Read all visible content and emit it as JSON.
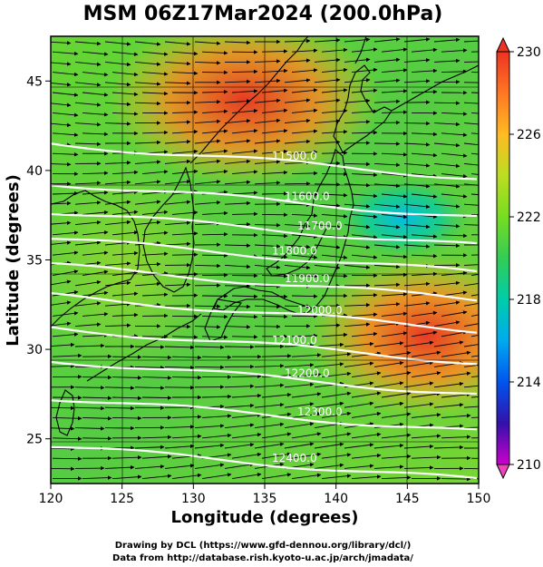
{
  "title": "MSM 06Z17Mar2024 (200.0hPa)",
  "xaxis": {
    "label": "Longitude (degrees)",
    "range": [
      120,
      150
    ],
    "ticks": [
      "120",
      "125",
      "130",
      "135",
      "140",
      "145",
      "150"
    ]
  },
  "yaxis": {
    "label": "Latitude (degrees)",
    "range": [
      22.5,
      47.5
    ],
    "ticks": [
      "25",
      "30",
      "35",
      "40",
      "45"
    ]
  },
  "colorbar": {
    "range": [
      210,
      230
    ],
    "ticks": [
      "210",
      "214",
      "218",
      "222",
      "226",
      "230"
    ],
    "colors": [
      "#cc00cc",
      "#3311aa",
      "#0055ee",
      "#00aaee",
      "#00ccaa",
      "#33cc55",
      "#77dd22",
      "#bbdd22",
      "#ffbb22",
      "#ff7722",
      "#ee3322"
    ]
  },
  "contours": [
    {
      "label": "11500.0",
      "lat": 41.5
    },
    {
      "label": "11600.0",
      "lat": 39.3
    },
    {
      "label": "11700.0",
      "lat": 37.7
    },
    {
      "label": "11800.0",
      "lat": 36.2
    },
    {
      "label": "11900.0",
      "lat": 34.7
    },
    {
      "label": "12000.0",
      "lat": 33.0
    },
    {
      "label": "12100.0",
      "lat": 31.2
    },
    {
      "label": "12200.0",
      "lat": 29.4
    },
    {
      "label": "12300.0",
      "lat": 27.3
    },
    {
      "label": "12400.0",
      "lat": 24.6
    }
  ],
  "credits": {
    "line1": "Drawing by DCL (https://www.gfd-dennou.org/library/dcl/)",
    "line2": "Data from http://database.rish.kyoto-u.ac.jp/arch/jmadata/"
  }
}
